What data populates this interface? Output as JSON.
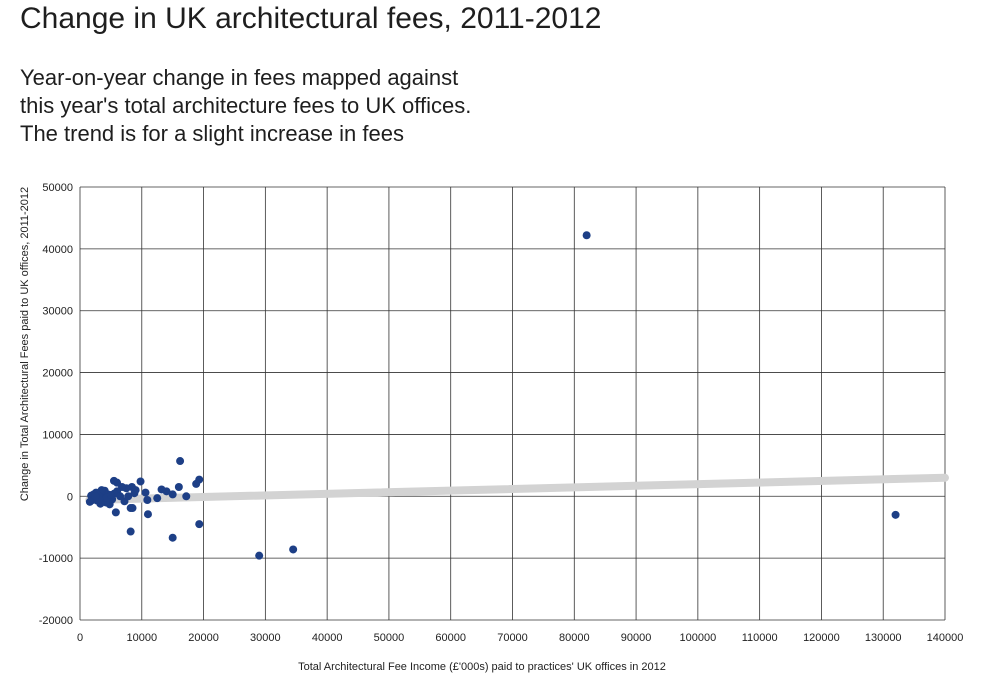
{
  "title": "Change in UK architectural fees, 2011-2012",
  "subtitle": [
    "Year-on-year change in fees mapped against",
    "this year's total architecture fees to UK offices.",
    "The trend is for a slight increase in fees"
  ],
  "colors": {
    "point": "#1d3f86",
    "trend": "#d3d3d3",
    "grid": "#333333"
  },
  "chart_data": {
    "type": "scatter",
    "xlabel": "Total Architectural Fee Income (£'000s) paid to practices' UK offices in 2012",
    "ylabel": "Change in Total Architectural Fees paid to UK offices, 2011-2012",
    "xlim": [
      0,
      140000
    ],
    "ylim": [
      -20000,
      50000
    ],
    "x_ticks": [
      "0",
      "10000",
      "20000",
      "30000",
      "40000",
      "50000",
      "60000",
      "70000",
      "80000",
      "90000",
      "100000",
      "110000",
      "120000",
      "130000",
      "140000"
    ],
    "y_ticks": [
      "50000",
      "40000",
      "30000",
      "20000",
      "10000",
      "0",
      "-10000",
      "-20000"
    ],
    "grid": "horizontal and vertical",
    "trendline": {
      "x": [
        1500,
        140000
      ],
      "y": [
        -600,
        3000
      ]
    },
    "points": [
      [
        82000,
        42200
      ],
      [
        132000,
        -3000
      ],
      [
        29000,
        -9600
      ],
      [
        34500,
        -8600
      ],
      [
        15000,
        -6700
      ],
      [
        19300,
        -4500
      ],
      [
        8200,
        -5700
      ],
      [
        16200,
        5700
      ],
      [
        19300,
        2700
      ],
      [
        18800,
        2000
      ],
      [
        16000,
        1500
      ],
      [
        17200,
        0
      ],
      [
        13200,
        1100
      ],
      [
        14000,
        800
      ],
      [
        15000,
        300
      ],
      [
        12500,
        -300
      ],
      [
        10900,
        -600
      ],
      [
        11000,
        -2900
      ],
      [
        10600,
        600
      ],
      [
        9800,
        2400
      ],
      [
        8500,
        -1900
      ],
      [
        8200,
        -1900
      ],
      [
        8400,
        1500
      ],
      [
        8800,
        500
      ],
      [
        7500,
        1300
      ],
      [
        7200,
        -800
      ],
      [
        7800,
        0
      ],
      [
        6800,
        1500
      ],
      [
        6000,
        2200
      ],
      [
        5500,
        2500
      ],
      [
        6000,
        800
      ],
      [
        5500,
        400
      ],
      [
        5800,
        -2600
      ],
      [
        5200,
        -500
      ],
      [
        4800,
        -1300
      ],
      [
        4500,
        300
      ],
      [
        4200,
        -1000
      ],
      [
        4000,
        900
      ],
      [
        3800,
        500
      ],
      [
        3600,
        -300
      ],
      [
        3500,
        1000
      ],
      [
        3300,
        -1200
      ],
      [
        3000,
        100
      ],
      [
        2800,
        -700
      ],
      [
        2600,
        600
      ],
      [
        2400,
        -300
      ],
      [
        2200,
        300
      ],
      [
        2000,
        -600
      ],
      [
        1800,
        100
      ],
      [
        1600,
        -900
      ],
      [
        4300,
        -200
      ],
      [
        5000,
        200
      ],
      [
        6500,
        0
      ],
      [
        9000,
        1000
      ],
      [
        3100,
        -500
      ],
      [
        2500,
        0
      ]
    ]
  }
}
